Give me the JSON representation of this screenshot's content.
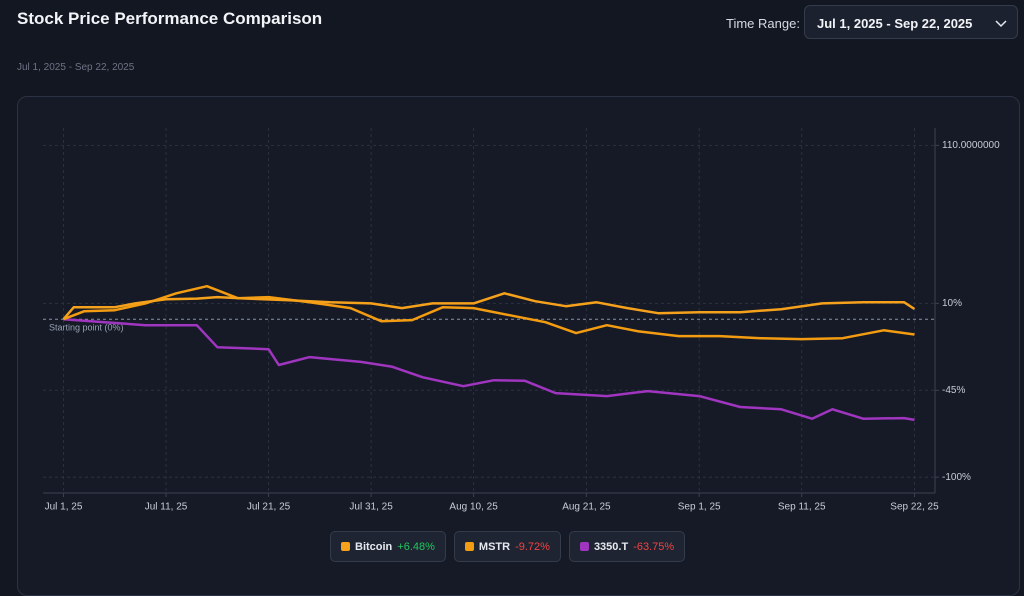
{
  "ui": {
    "time_range_label": "Time Range:",
    "time_range_value": "Jul 1, 2025 - Sep 22, 2025"
  },
  "chart_data": {
    "type": "line",
    "title": "Stock Price Performance Comparison",
    "subtitle": "Jul 1, 2025 - Sep 22, 2025",
    "baseline": 0,
    "baseline_label": "Starting point (0%)",
    "xlim": [
      "2025-06-29",
      "2025-09-24"
    ],
    "xticks": [
      {
        "value": "2025-07-01",
        "label": "Jul 1, 25"
      },
      {
        "value": "2025-07-11",
        "label": "Jul 11, 25"
      },
      {
        "value": "2025-07-21",
        "label": "Jul 21, 25"
      },
      {
        "value": "2025-07-31",
        "label": "Jul 31, 25"
      },
      {
        "value": "2025-08-10",
        "label": "Aug 10, 25"
      },
      {
        "value": "2025-08-21",
        "label": "Aug 21, 25"
      },
      {
        "value": "2025-09-01",
        "label": "Sep 1, 25"
      },
      {
        "value": "2025-09-11",
        "label": "Sep 11, 25"
      },
      {
        "value": "2025-09-22",
        "label": "Sep 22, 25"
      }
    ],
    "ylim": [
      -110,
      121
    ],
    "yticks": [
      {
        "value": 110,
        "label": "110.0000000"
      },
      {
        "value": 10,
        "label": "10%"
      },
      {
        "value": -45,
        "label": "-45%"
      },
      {
        "value": -100,
        "label": "-100%"
      }
    ],
    "grid": true,
    "series": [
      {
        "name": "Bitcoin",
        "color": "#f5a11c",
        "change": 6.48,
        "change_label": "+6.48%",
        "x": [
          "2025-07-01",
          "2025-07-02",
          "2025-07-06",
          "2025-07-08",
          "2025-07-11",
          "2025-07-14",
          "2025-07-16",
          "2025-07-19",
          "2025-07-23",
          "2025-07-27",
          "2025-07-31",
          "2025-08-03",
          "2025-08-06",
          "2025-08-10",
          "2025-08-13",
          "2025-08-16",
          "2025-08-19",
          "2025-08-22",
          "2025-08-25",
          "2025-08-28",
          "2025-09-01",
          "2025-09-05",
          "2025-09-09",
          "2025-09-13",
          "2025-09-17",
          "2025-09-21",
          "2025-09-22"
        ],
        "values": [
          0,
          7.6,
          7.6,
          10,
          12.6,
          13,
          14,
          13,
          12,
          10.7,
          10,
          7,
          10,
          10,
          16.4,
          11.4,
          8.2,
          10.7,
          7,
          3.8,
          4.4,
          4.4,
          6.3,
          10,
          10.7,
          10.7,
          6.48
        ]
      },
      {
        "name": "MSTR",
        "color": "#f39c12",
        "change": -9.72,
        "change_label": "-9.72%",
        "x": [
          "2025-07-01",
          "2025-07-03",
          "2025-07-06",
          "2025-07-09",
          "2025-07-12",
          "2025-07-15",
          "2025-07-18",
          "2025-07-21",
          "2025-07-25",
          "2025-07-29",
          "2025-08-01",
          "2025-08-04",
          "2025-08-07",
          "2025-08-10",
          "2025-08-14",
          "2025-08-17",
          "2025-08-20",
          "2025-08-23",
          "2025-08-26",
          "2025-08-30",
          "2025-09-03",
          "2025-09-07",
          "2025-09-11",
          "2025-09-15",
          "2025-09-19",
          "2025-09-22"
        ],
        "values": [
          0,
          5,
          5.7,
          10,
          16.4,
          20.9,
          13.3,
          14,
          10.7,
          7,
          -1.3,
          -0.6,
          7.6,
          7,
          1.9,
          -1.9,
          -8.8,
          -3.8,
          -7.6,
          -10.7,
          -10.7,
          -12,
          -12.6,
          -12,
          -7,
          -9.72
        ]
      },
      {
        "name": "3350.T",
        "color": "#a035c0",
        "change": -63.75,
        "change_label": "-63.75%",
        "x": [
          "2025-07-01",
          "2025-07-05",
          "2025-07-09",
          "2025-07-14",
          "2025-07-16",
          "2025-07-21",
          "2025-07-22",
          "2025-07-25",
          "2025-07-30",
          "2025-08-02",
          "2025-08-05",
          "2025-08-09",
          "2025-08-12",
          "2025-08-15",
          "2025-08-18",
          "2025-08-23",
          "2025-08-27",
          "2025-09-01",
          "2025-09-05",
          "2025-09-09",
          "2025-09-12",
          "2025-09-14",
          "2025-09-17",
          "2025-09-21",
          "2025-09-22"
        ],
        "values": [
          0,
          -1.9,
          -3.8,
          -3.8,
          -17.7,
          -19,
          -29,
          -24,
          -27,
          -30,
          -36.7,
          -42.4,
          -38.6,
          -39,
          -46.8,
          -48.7,
          -45.5,
          -48.7,
          -55.6,
          -57,
          -63,
          -57,
          -63,
          -62.6,
          -63.75
        ]
      }
    ]
  }
}
